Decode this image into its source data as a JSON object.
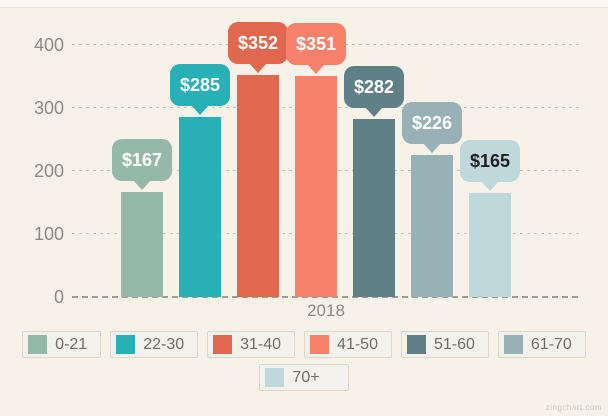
{
  "watermark": "zingchart.com",
  "chart_data": {
    "type": "bar",
    "title": "",
    "xlabel": "2018",
    "ylabel": "",
    "ylim": [
      0,
      430
    ],
    "yticks": [
      400,
      300,
      200,
      100,
      0
    ],
    "grid": "horizontal-dashed",
    "legend_position": "bottom",
    "categories": [
      "0-21",
      "22-30",
      "31-40",
      "41-50",
      "51-60",
      "61-70",
      "70+"
    ],
    "values": [
      167,
      285,
      352,
      351,
      282,
      226,
      165
    ],
    "value_labels": [
      "$167",
      "$285",
      "$352",
      "$351",
      "$282",
      "$226",
      "$165"
    ],
    "bar_colors": [
      "#95b9a8",
      "#27b0b6",
      "#e1674e",
      "#f8816b",
      "#5f8084",
      "#97b1b7",
      "#bfd8dc"
    ],
    "bubble_text_colors": [
      "#ffffff",
      "#ffffff",
      "#ffffff",
      "#ffffff",
      "#ffffff",
      "#ffffff",
      "#1f1f1f"
    ],
    "legend_rows": [
      6,
      1
    ],
    "background_color": "#f6f2e7"
  }
}
